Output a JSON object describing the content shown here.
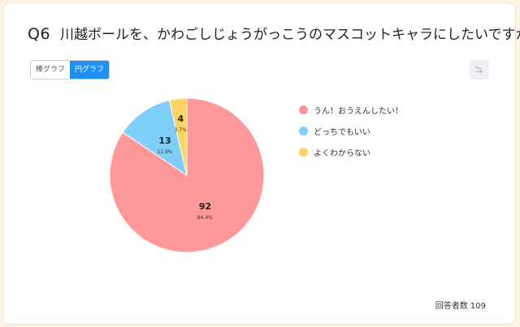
{
  "question": {
    "number": "Q6",
    "text": "川越ボールを、かわごしじょうがっこうのマスコットキャラにしたいですか？"
  },
  "toggle": {
    "bar_label": "棒グラフ",
    "pie_label": "円グラフ",
    "selected": "pie"
  },
  "download_icon": "download-icon",
  "respondents": {
    "label": "回答者数",
    "count": "109"
  },
  "chart_data": {
    "type": "pie",
    "categories": [
      "うん！おうえんしたい！",
      "どっちでもいい",
      "よくわからない"
    ],
    "values": [
      92,
      13,
      4
    ],
    "percents": [
      "84.4%",
      "11.9%",
      "3.7%"
    ],
    "colors": [
      "#ff9999",
      "#7fcffb",
      "#fcd461"
    ],
    "start_angle": "top",
    "direction": "clockwise",
    "legend_placement": "right"
  }
}
